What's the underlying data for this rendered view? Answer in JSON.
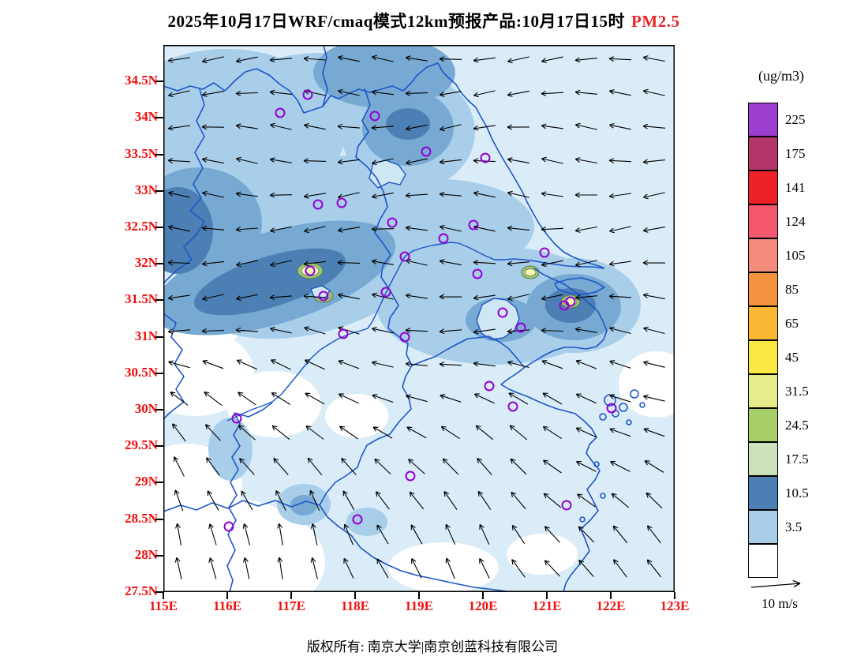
{
  "title": {
    "main": "2025年10月17日WRF/cmaq模式12km预报产品:10月17日15时",
    "species": "PM2.5",
    "species_color": "#e8262a"
  },
  "axes": {
    "tick_color": "#f20c0c",
    "lat": [
      {
        "text": "34.5N",
        "value": 34.5
      },
      {
        "text": "34N",
        "value": 34.0
      },
      {
        "text": "33.5N",
        "value": 33.5
      },
      {
        "text": "33N",
        "value": 33.0
      },
      {
        "text": "32.5N",
        "value": 32.5
      },
      {
        "text": "32N",
        "value": 32.0
      },
      {
        "text": "31.5N",
        "value": 31.5
      },
      {
        "text": "31N",
        "value": 31.0
      },
      {
        "text": "30.5N",
        "value": 30.5
      },
      {
        "text": "30N",
        "value": 30.0
      },
      {
        "text": "29.5N",
        "value": 29.5
      },
      {
        "text": "29N",
        "value": 29.0
      },
      {
        "text": "28.5N",
        "value": 28.5
      },
      {
        "text": "28N",
        "value": 28.0
      },
      {
        "text": "27.5N",
        "value": 27.5
      }
    ],
    "lon": [
      {
        "text": "115E",
        "value": 115
      },
      {
        "text": "116E",
        "value": 116
      },
      {
        "text": "117E",
        "value": 117
      },
      {
        "text": "118E",
        "value": 118
      },
      {
        "text": "119E",
        "value": 119
      },
      {
        "text": "120E",
        "value": 120
      },
      {
        "text": "121E",
        "value": 121
      },
      {
        "text": "122E",
        "value": 122
      },
      {
        "text": "123E",
        "value": 123
      }
    ]
  },
  "colorbar": {
    "unit_label": "(ug/m3)",
    "labels": [
      "225",
      "175",
      "141",
      "124",
      "105",
      "85",
      "65",
      "45",
      "31.5",
      "24.5",
      "17.5",
      "10.5",
      "3.5"
    ],
    "colors_top_to_bottom": [
      "#9C3FD0",
      "#B23768",
      "#EE2128",
      "#F4586E",
      "#F48C7E",
      "#F5923E",
      "#F9B833",
      "#FBE843",
      "#E6EC8B",
      "#A6CF6A",
      "#CDE2BC",
      "#4C80B4",
      "#A8CEEA",
      "#FFFFFF"
    ]
  },
  "wind_scale": {
    "label": "10 m/s"
  },
  "footer": {
    "copyright": "版权所有: 南京大学|南京创蓝科技有限公司"
  },
  "chart_data": {
    "type": "heatmap",
    "subtype": "filled-contour map with wind vectors and station markers",
    "title": "2025年10月17日WRF/cmaq模式12km预报产品:10月17日15时 PM2.5",
    "variable": "PM2.5",
    "unit": "ug/m3",
    "x_axis": {
      "label": "longitude",
      "ticks": [
        "115E",
        "116E",
        "117E",
        "118E",
        "119E",
        "120E",
        "121E",
        "122E",
        "123E"
      ],
      "range": [
        115,
        123
      ]
    },
    "y_axis": {
      "label": "latitude",
      "ticks": [
        "27.5N",
        "28N",
        "28.5N",
        "29N",
        "29.5N",
        "30N",
        "30.5N",
        "31N",
        "31.5N",
        "32N",
        "32.5N",
        "33N",
        "33.5N",
        "34N",
        "34.5N"
      ],
      "range": [
        27.5,
        35.0
      ]
    },
    "contour_levels_ascending": [
      3.5,
      10.5,
      17.5,
      24.5,
      31.5,
      45,
      65,
      85,
      105,
      124,
      141,
      175,
      225
    ],
    "contour_colors_bottom_to_top": [
      "#FFFFFF",
      "#A8CEEA",
      "#4C80B4",
      "#CDE2BC",
      "#A6CF6A",
      "#E6EC8B",
      "#FBE843",
      "#F9B833",
      "#F5923E",
      "#F48C7E",
      "#F4586E",
      "#EE2128",
      "#B23768",
      "#9C3FD0"
    ],
    "legend_position": "right",
    "wind_reference_vector": "10 m/s",
    "notes": "PM2.5 mostly 3.5-24.5 ug/m3 (white to blue shades); elevated NW-SE band over central Anhui near 117E/32N and around Shanghai near 121E/31.5N, with small hotspots reaching the 45-65 ug/m3 (yellow) range; flow is generally easterly in the north turning southerly/southeasterly in the south."
  }
}
